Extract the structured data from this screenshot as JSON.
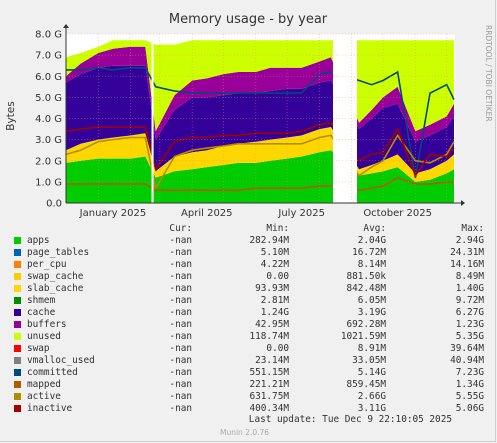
{
  "chart_data": {
    "type": "area",
    "title": "Memory usage - by year",
    "ylabel": "Bytes",
    "side_label": "RRDTOOL / TOBI OETIKER",
    "ylim": [
      0,
      8.0
    ],
    "y_ticks": [
      "0.0",
      "1.0 G",
      "2.0 G",
      "3.0 G",
      "4.0 G",
      "5.0 G",
      "6.0 G",
      "7.0 G",
      "8.0 G"
    ],
    "x_ticks": [
      "January 2025",
      "April 2025",
      "July 2025",
      "October 2025"
    ],
    "x_range": [
      "2024-12-01",
      "2025-12-09"
    ],
    "gaps": [
      [
        "2025-02-21",
        "2025-02-23"
      ],
      [
        "2025-08-14",
        "2025-09-06"
      ]
    ],
    "stack_order": [
      "apps",
      "page_tables",
      "per_cpu",
      "swap_cache",
      "slab_cache",
      "cache",
      "buffers",
      "unused"
    ],
    "columns": [
      "Cur:",
      "Min:",
      "Avg:",
      "Max:"
    ],
    "series": [
      {
        "name": "apps",
        "color": "#00cc00",
        "cur": "-nan",
        "min": "282.94M",
        "avg": "2.04G",
        "max": "2.94G"
      },
      {
        "name": "page_tables",
        "color": "#0066b3",
        "cur": "-nan",
        "min": "5.10M",
        "avg": "16.72M",
        "max": "24.31M"
      },
      {
        "name": "per_cpu",
        "color": "#ff8000",
        "cur": "-nan",
        "min": "4.22M",
        "avg": "8.14M",
        "max": "14.16M"
      },
      {
        "name": "swap_cache",
        "color": "#ffcc00",
        "cur": "-nan",
        "min": "0.00",
        "avg": "881.50k",
        "max": "8.49M"
      },
      {
        "name": "slab_cache",
        "color": "#ffd700",
        "cur": "-nan",
        "min": "93.93M",
        "avg": "842.48M",
        "max": "1.40G"
      },
      {
        "name": "shmem",
        "color": "#008f00",
        "cur": "-nan",
        "min": "2.81M",
        "avg": "6.05M",
        "max": "9.72M"
      },
      {
        "name": "cache",
        "color": "#330099",
        "cur": "-nan",
        "min": "1.24G",
        "avg": "3.19G",
        "max": "6.27G"
      },
      {
        "name": "buffers",
        "color": "#990099",
        "cur": "-nan",
        "min": "42.95M",
        "avg": "692.28M",
        "max": "1.23G"
      },
      {
        "name": "unused",
        "color": "#ccff00",
        "cur": "-nan",
        "min": "118.74M",
        "avg": "1021.59M",
        "max": "5.35G"
      },
      {
        "name": "swap",
        "color": "#ff0000",
        "cur": "-nan",
        "min": "0.00",
        "avg": "8.91M",
        "max": "39.64M"
      },
      {
        "name": "vmalloc_used",
        "color": "#808080",
        "cur": "-nan",
        "min": "23.14M",
        "avg": "33.05M",
        "max": "40.94M"
      },
      {
        "name": "committed",
        "color": "#00487d",
        "cur": "-nan",
        "min": "551.15M",
        "avg": "5.14G",
        "max": "7.23G"
      },
      {
        "name": "mapped",
        "color": "#b35a00",
        "cur": "-nan",
        "min": "221.21M",
        "avg": "859.45M",
        "max": "1.34G"
      },
      {
        "name": "active",
        "color": "#b38f00",
        "cur": "-nan",
        "min": "631.75M",
        "avg": "2.66G",
        "max": "5.55G"
      },
      {
        "name": "inactive",
        "color": "#a30000",
        "cur": "-nan",
        "min": "400.34M",
        "avg": "3.11G",
        "max": "5.06G"
      }
    ],
    "samples": {
      "x": [
        "2024-12-01",
        "2024-12-15",
        "2025-01-01",
        "2025-01-15",
        "2025-02-01",
        "2025-02-15",
        "2025-02-25",
        "2025-03-15",
        "2025-04-01",
        "2025-04-15",
        "2025-05-01",
        "2025-05-15",
        "2025-06-01",
        "2025-06-15",
        "2025-07-01",
        "2025-07-15",
        "2025-08-01",
        "2025-08-12",
        "2025-09-08",
        "2025-09-20",
        "2025-10-01",
        "2025-10-15",
        "2025-11-01",
        "2025-11-15",
        "2025-12-01",
        "2025-12-08"
      ],
      "stack": {
        "apps": [
          1.9,
          2.0,
          2.1,
          2.1,
          2.1,
          2.2,
          1.2,
          1.5,
          1.6,
          1.7,
          1.8,
          1.9,
          1.9,
          2.0,
          2.1,
          2.2,
          2.4,
          2.5,
          1.3,
          1.4,
          1.5,
          1.7,
          1.0,
          1.1,
          1.4,
          1.6
        ],
        "slab_cache": [
          0.6,
          0.8,
          0.9,
          1.0,
          1.1,
          1.1,
          0.3,
          0.7,
          0.8,
          0.8,
          0.9,
          0.9,
          1.0,
          1.0,
          1.0,
          1.0,
          1.1,
          1.1,
          0.3,
          0.4,
          0.5,
          0.6,
          0.4,
          0.5,
          0.6,
          0.7
        ],
        "cache": [
          3.2,
          3.3,
          3.4,
          3.4,
          3.3,
          3.2,
          1.5,
          2.2,
          2.6,
          2.5,
          2.4,
          2.4,
          2.3,
          2.3,
          2.3,
          2.2,
          2.2,
          2.2,
          1.9,
          2.2,
          2.5,
          2.4,
          1.5,
          1.6,
          1.6,
          1.8
        ],
        "buffers": [
          0.3,
          0.5,
          0.7,
          0.8,
          0.9,
          0.9,
          0.4,
          0.7,
          0.8,
          0.9,
          1.0,
          1.0,
          1.0,
          1.1,
          1.0,
          1.0,
          1.0,
          1.1,
          0.3,
          0.4,
          0.5,
          0.8,
          0.5,
          0.5,
          0.5,
          0.6
        ],
        "unused": [
          0.9,
          0.5,
          0.3,
          0.4,
          0.3,
          0.3,
          4.1,
          2.4,
          1.9,
          1.8,
          1.6,
          1.5,
          1.5,
          1.3,
          1.3,
          1.3,
          1.0,
          0.8,
          3.9,
          3.3,
          2.7,
          2.2,
          4.3,
          4.0,
          3.6,
          3.0
        ]
      },
      "lines": {
        "committed": [
          6.3,
          6.3,
          6.4,
          6.3,
          6.4,
          6.4,
          5.5,
          5.3,
          5.2,
          5.2,
          5.2,
          5.2,
          5.2,
          5.2,
          5.2,
          5.2,
          6.1,
          6.2,
          5.8,
          5.6,
          5.8,
          6.2,
          1.2,
          5.2,
          5.6,
          4.9
        ],
        "active": [
          2.3,
          2.5,
          2.9,
          3.0,
          3.1,
          3.1,
          0.7,
          2.2,
          2.5,
          2.6,
          2.7,
          2.8,
          2.8,
          2.8,
          2.8,
          2.8,
          3.1,
          3.2,
          1.3,
          1.7,
          2.0,
          3.2,
          2.0,
          1.9,
          2.3,
          2.9
        ],
        "inactive": [
          3.4,
          3.5,
          3.6,
          3.6,
          3.6,
          3.6,
          1.6,
          2.9,
          3.1,
          3.1,
          3.2,
          3.2,
          3.3,
          3.3,
          3.3,
          3.4,
          3.7,
          3.8,
          2.0,
          2.3,
          2.4,
          3.5,
          1.3,
          2.3,
          2.2,
          2.6
        ],
        "mapped": [
          0.9,
          0.9,
          0.9,
          0.9,
          0.9,
          0.9,
          0.6,
          0.6,
          0.6,
          0.6,
          0.6,
          0.6,
          0.7,
          0.7,
          0.7,
          0.7,
          0.8,
          0.8,
          0.6,
          0.7,
          0.8,
          1.2,
          0.9,
          0.9,
          1.0,
          1.0
        ]
      }
    }
  },
  "footer": {
    "last_update": "Last update: Tue Dec  9 22:10:05 2025",
    "munin_version": "Munin 2.0.76"
  }
}
